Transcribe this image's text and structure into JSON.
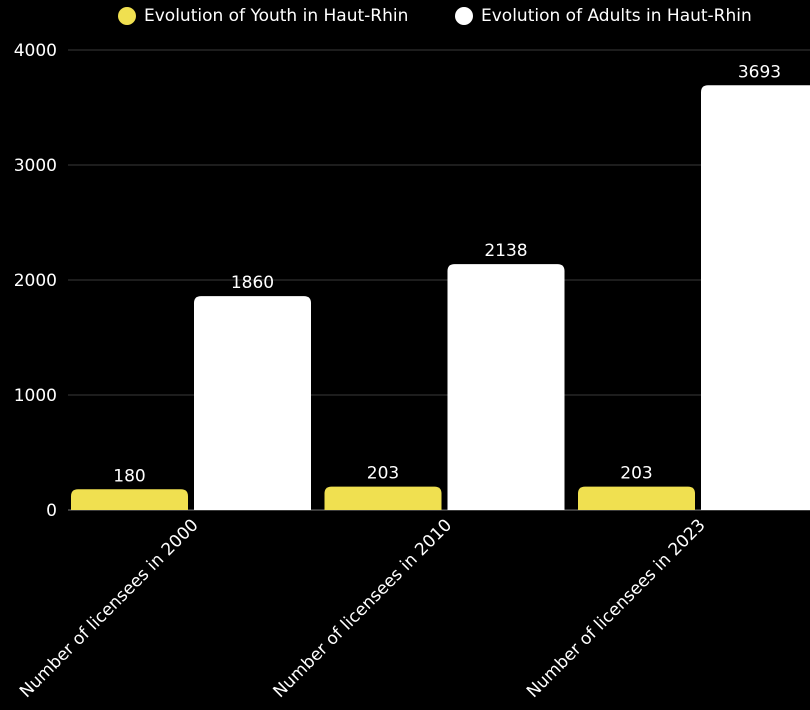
{
  "chart_data": {
    "type": "bar",
    "categories": [
      "Number of licensees in 2000",
      "Number of licensees in 2010",
      "Number of licensees in 2023"
    ],
    "series": [
      {
        "name": "Evolution of Youth in Haut-Rhin",
        "color": "#f0e050",
        "values": [
          180,
          203,
          203
        ]
      },
      {
        "name": "Evolution of Adults in Haut-Rhin",
        "color": "#ffffff",
        "values": [
          1860,
          2138,
          3693
        ]
      }
    ],
    "yticks": [
      0,
      1000,
      2000,
      3000,
      4000
    ],
    "ylim": [
      0,
      4000
    ],
    "grid": true,
    "legend_position": "top"
  }
}
